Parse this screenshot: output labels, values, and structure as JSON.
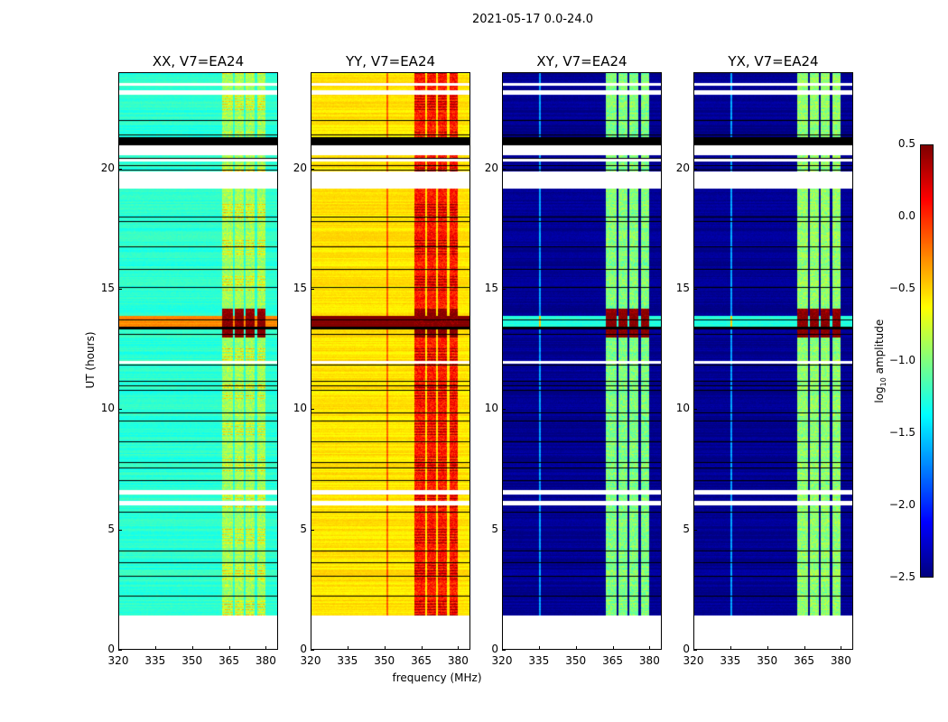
{
  "chart_data": {
    "type": "heatmap",
    "title": "2021-05-17 0.0-24.0",
    "xlabel": "frequency (MHz)",
    "ylabel": "UT (hours)",
    "xlim": [
      320,
      385
    ],
    "ylim": [
      0,
      24
    ],
    "xticks": [
      "320",
      "335",
      "350",
      "365",
      "380"
    ],
    "xtick_values": [
      320,
      335,
      350,
      365,
      380
    ],
    "yticks": [
      "0",
      "5",
      "10",
      "15",
      "20"
    ],
    "ytick_values": [
      0,
      5,
      10,
      15,
      20
    ],
    "colorbar": {
      "label_prefix": "log",
      "label_sub": "10",
      "label_suffix": " amplitude",
      "range": [
        -2.5,
        0.5
      ],
      "ticks": [
        "0.5",
        "0.0",
        "−0.5",
        "−1.0",
        "−1.5",
        "−2.0",
        "−2.5"
      ],
      "tick_values": [
        0.5,
        0.0,
        -0.5,
        -1.0,
        -1.5,
        -2.0,
        -2.5
      ],
      "colormap": "jet"
    },
    "data_start_hour": 1.4,
    "flagged_hours_white": [
      [
        6.0,
        6.2
      ],
      [
        6.45,
        6.65
      ],
      [
        11.9,
        12.0
      ],
      [
        19.2,
        19.9
      ],
      [
        20.35,
        20.45
      ],
      [
        20.6,
        21.0
      ],
      [
        23.1,
        23.3
      ],
      [
        23.5,
        23.6
      ]
    ],
    "flagged_hours_black": [
      [
        21.0,
        21.3
      ],
      [
        13.35,
        13.45
      ]
    ],
    "rfi_bands_mhz": [
      [
        362,
        366.5
      ],
      [
        367.5,
        371
      ],
      [
        372,
        375.5
      ],
      [
        376.5,
        380
      ]
    ],
    "panels": [
      {
        "title": "XX, V7=EA24",
        "base": -1.25,
        "band": -0.9,
        "storm_base": -0.3,
        "storm_band": 0.5
      },
      {
        "title": "YY, V7=EA24",
        "base": -0.55,
        "band": 0.05,
        "storm_base": 0.5,
        "storm_band": 0.5
      },
      {
        "title": "XY, V7=EA24",
        "base": -2.45,
        "band": -1.0,
        "storm_base": -1.3,
        "storm_band": 0.5
      },
      {
        "title": "YX, V7=EA24",
        "base": -2.45,
        "band": -0.95,
        "storm_base": -1.3,
        "storm_band": 0.5
      }
    ]
  }
}
